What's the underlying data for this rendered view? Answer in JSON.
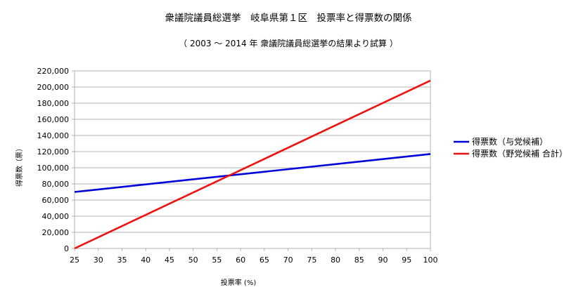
{
  "chart_data": {
    "type": "line",
    "title": "衆議院議員総選挙　岐阜県第１区　投票率と得票数の関係",
    "subtitle": "（ 2003 ～ 2014 年 衆議院議員総選挙の結果より試算 ）",
    "xlabel": "投票率 (%)",
    "ylabel": "得票数（票）",
    "xlim": [
      25,
      100
    ],
    "ylim": [
      0,
      220000
    ],
    "x_ticks": [
      25,
      30,
      35,
      40,
      45,
      50,
      55,
      60,
      65,
      70,
      75,
      80,
      85,
      90,
      95,
      100
    ],
    "y_ticks": [
      0,
      20000,
      40000,
      60000,
      80000,
      100000,
      120000,
      140000,
      160000,
      180000,
      200000,
      220000
    ],
    "y_tick_labels": [
      "0",
      "20,000",
      "40,000",
      "60,000",
      "80,000",
      "100,000",
      "120,000",
      "140,000",
      "160,000",
      "180,000",
      "200,000",
      "220,000"
    ],
    "grid": true,
    "legend_position": "right",
    "series": [
      {
        "name": "得票数（与党候補）",
        "color": "#0000dd",
        "x": [
          25,
          100
        ],
        "y": [
          70000,
          117000
        ]
      },
      {
        "name": "得票数（野党候補 合計）",
        "color": "#ee1111",
        "x": [
          25,
          100
        ],
        "y": [
          0,
          208000
        ]
      }
    ]
  }
}
